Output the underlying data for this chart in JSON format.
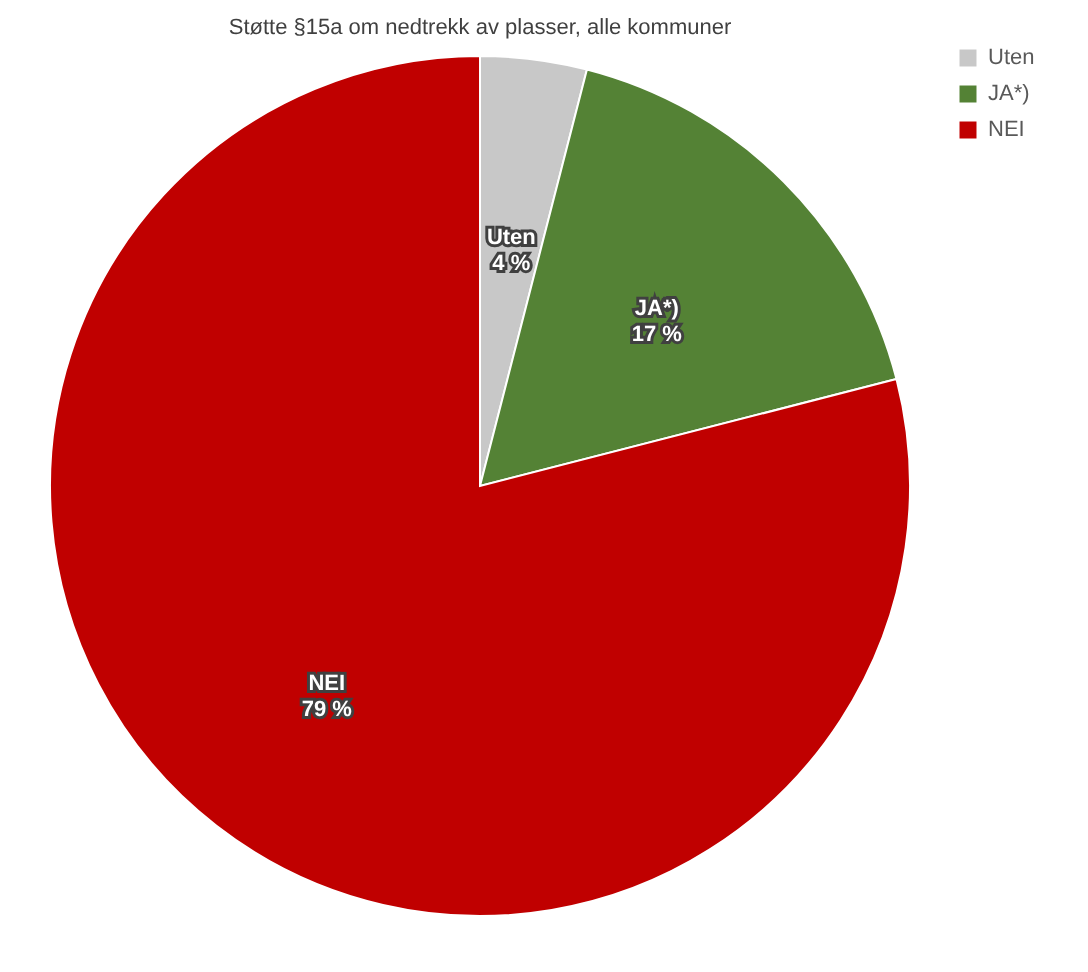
{
  "chart_data": {
    "type": "pie",
    "title": "Støtte §15a om nedtrekk av plasser, alle kommuner",
    "categories": [
      "Uten",
      "JA*)",
      "NEI"
    ],
    "values": [
      4,
      17,
      79
    ],
    "value_labels": [
      "4 %",
      "17 %",
      "79 %"
    ],
    "colors": [
      "#c8c8c8",
      "#548235",
      "#c00000"
    ],
    "legend": "right"
  }
}
